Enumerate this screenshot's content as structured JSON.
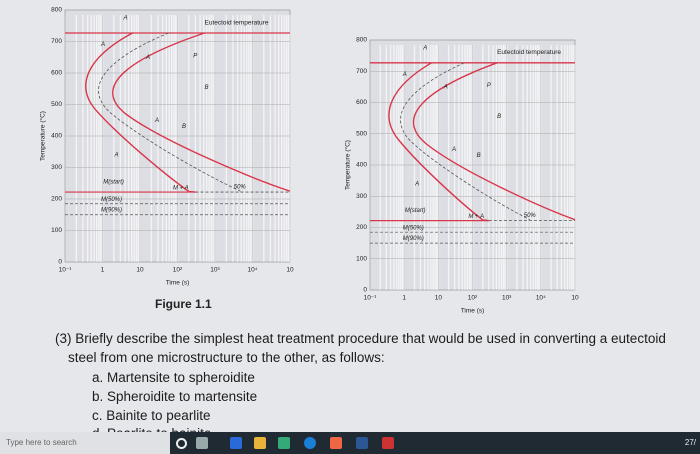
{
  "figures": [
    {
      "y_axis_label": "Temperature (°C)",
      "x_axis_label": "Time (s)",
      "y_ticks": [
        "800",
        "700",
        "600",
        "500",
        "400",
        "300",
        "200",
        "100",
        "0"
      ],
      "x_ticks": [
        "10⁻¹",
        "1",
        "10",
        "10²",
        "10³",
        "10⁴",
        "10"
      ],
      "eutectoid_label": "Eutectoid temperature",
      "region_labels": [
        "A",
        "A",
        "A",
        "P",
        "B",
        "A",
        "B",
        "A",
        "M(start)",
        "M + A",
        "50%",
        "M(50%)",
        "M(90%)"
      ]
    },
    {
      "y_axis_label": "Temperature (°C)",
      "x_axis_label": "Time (s)",
      "y_ticks": [
        "800",
        "700",
        "600",
        "500",
        "400",
        "300",
        "200",
        "100",
        "0"
      ],
      "x_ticks": [
        "10⁻¹",
        "1",
        "10",
        "10²",
        "10³",
        "10⁴",
        "10"
      ],
      "eutectoid_label": "Eutectoid temperature",
      "region_labels": [
        "A",
        "A",
        "A",
        "P",
        "B",
        "A",
        "B",
        "A",
        "M(start)",
        "M + A",
        "50%",
        "M(50%)",
        "M(90%)"
      ]
    }
  ],
  "caption": "Figure 1.1",
  "question": {
    "line1": "(3) Briefly describe the simplest heat treatment procedure that would be used in converting a eutectoid",
    "line2": "steel from one microstructure to the other, as follows:",
    "items": [
      "a.  Martensite to spheroidite",
      "b.  Spheroidite to martensite",
      "c.  Bainite to pearlite",
      "d.  Pearlite to bainite"
    ]
  },
  "taskbar": {
    "search": "Type here to search",
    "clock": "27/"
  }
}
